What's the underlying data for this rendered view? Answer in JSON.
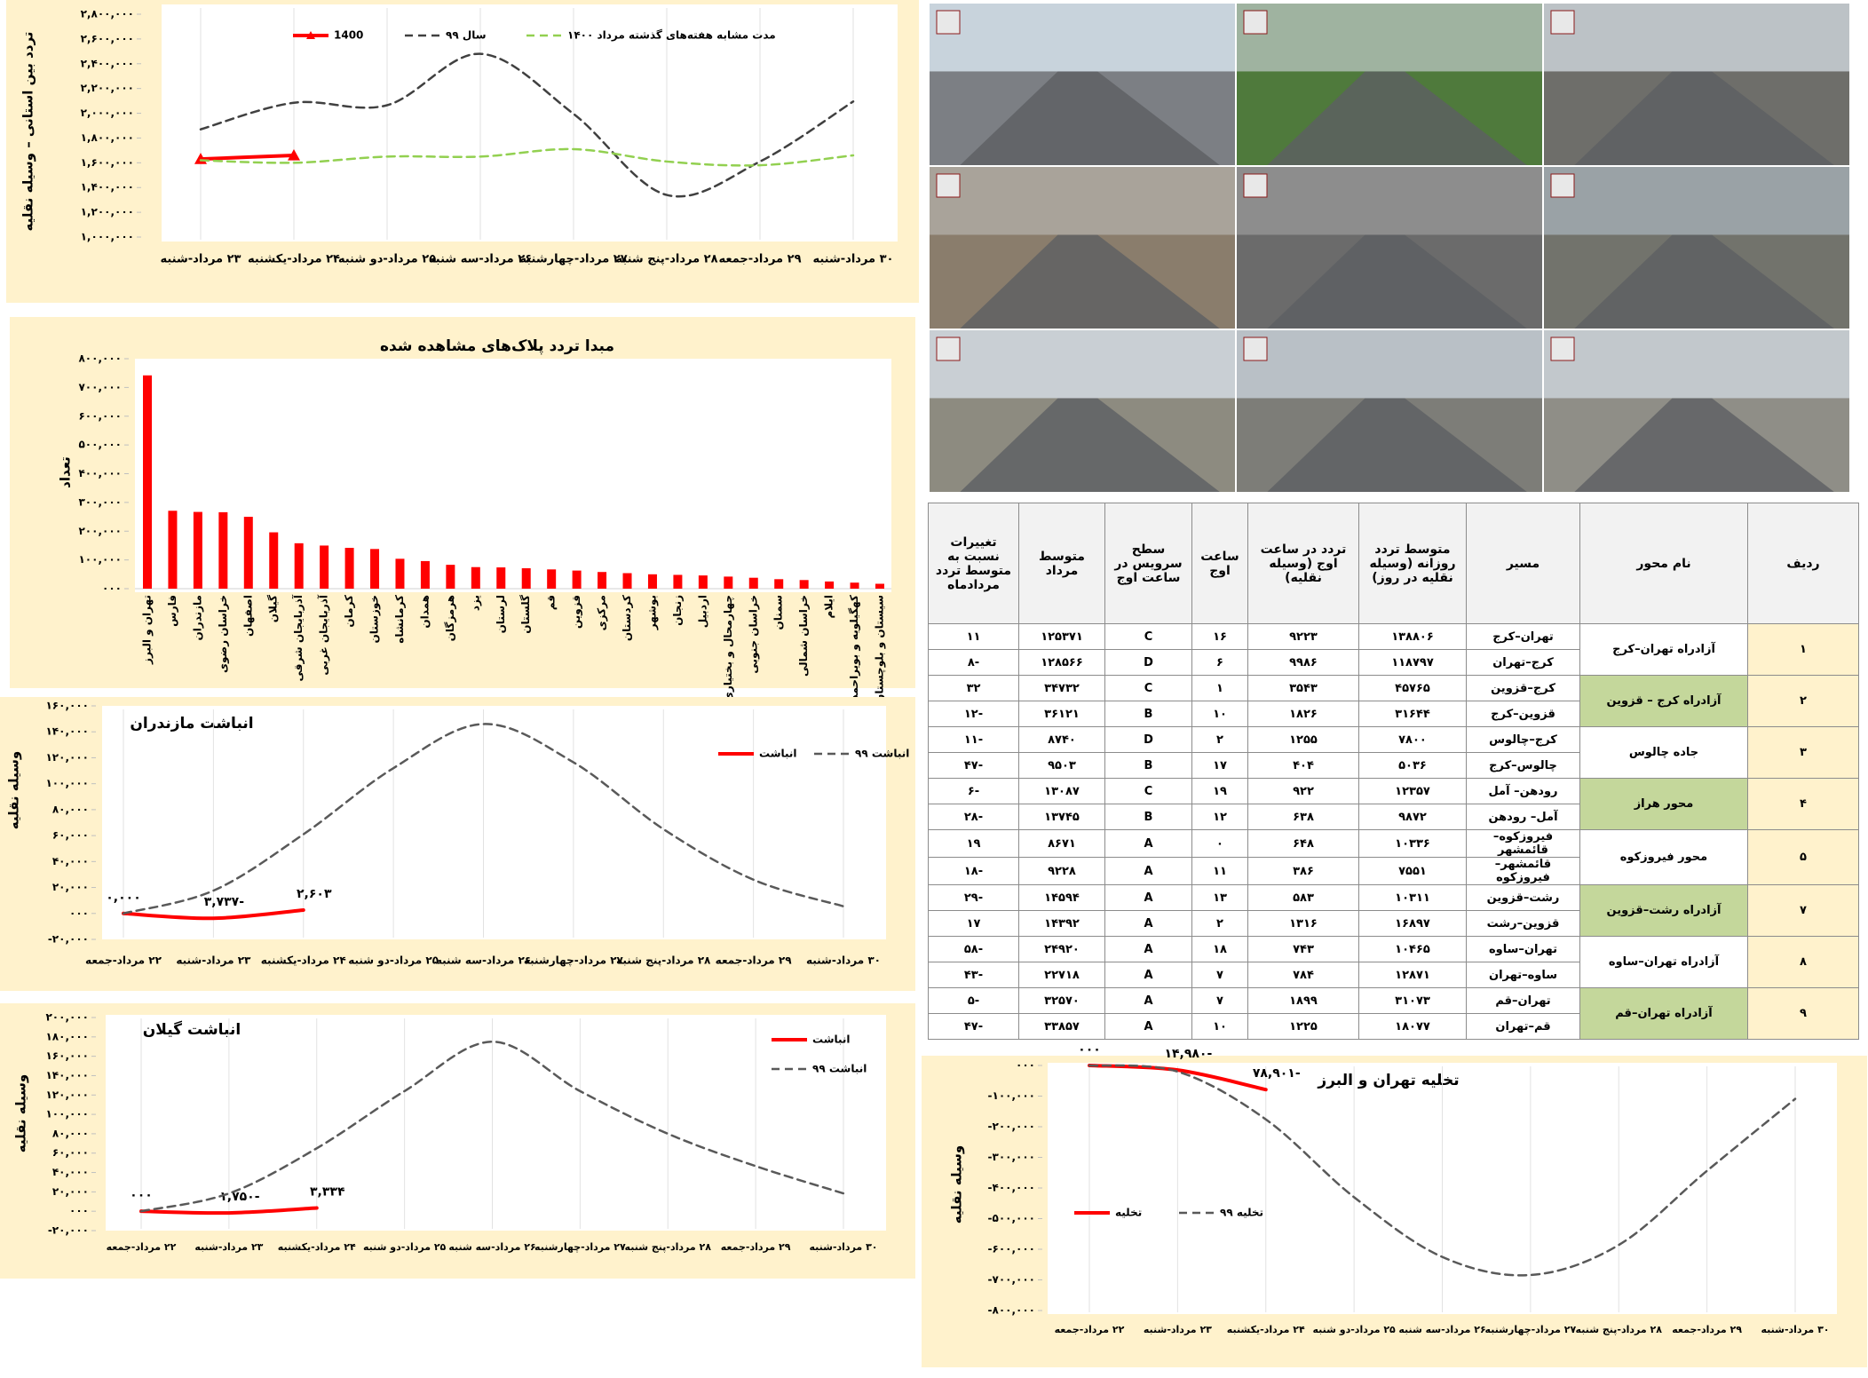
{
  "chart_data": [
    {
      "type": "line",
      "y_label": "تردد بین استانی – وسیله نقلیه",
      "categories": [
        "۲۳ مرداد-شنبه",
        "۲۴ مرداد-یکشنبه",
        "۲۵ مرداد-دو شنبه",
        "۲۶ مرداد-سه شنبه",
        "۲۷ مرداد-چهارشنبه",
        "۲۸ مرداد-پنج شنبه",
        "۲۹ مرداد-جمعه",
        "۳۰ مرداد-شنبه"
      ],
      "series": [
        {
          "name": "1400",
          "color": "#ff0000",
          "marker": "triangle",
          "values": [
            1630000,
            1660000,
            null,
            null,
            null,
            null,
            null,
            null
          ]
        },
        {
          "name": "سال ۹۹",
          "color": "#404040",
          "dash": true,
          "values": [
            1870000,
            2085000,
            2065000,
            2480000,
            1995000,
            1340000,
            1610000,
            2095000
          ]
        },
        {
          "name": "مدت مشابه هفته‌های گذشته مرداد ۱۴۰۰",
          "color": "#92d050",
          "dash": true,
          "values": [
            1620000,
            1600000,
            1650000,
            1650000,
            1710000,
            1610000,
            1580000,
            1660000
          ]
        }
      ],
      "ylim": [
        1000000,
        2800000
      ],
      "yticks": [
        {
          "value": 1000000,
          "label": "۱,۰۰۰,۰۰۰"
        },
        {
          "value": 1200000,
          "label": "۱,۲۰۰,۰۰۰"
        },
        {
          "value": 1400000,
          "label": "۱,۴۰۰,۰۰۰"
        },
        {
          "value": 1600000,
          "label": "۱,۶۰۰,۰۰۰"
        },
        {
          "value": 1800000,
          "label": "۱,۸۰۰,۰۰۰"
        },
        {
          "value": 2000000,
          "label": "۲,۰۰۰,۰۰۰"
        },
        {
          "value": 2200000,
          "label": "۲,۲۰۰,۰۰۰"
        },
        {
          "value": 2400000,
          "label": "۲,۴۰۰,۰۰۰"
        },
        {
          "value": 2600000,
          "label": "۲,۶۰۰,۰۰۰"
        },
        {
          "value": 2800000,
          "label": "۲,۸۰۰,۰۰۰"
        }
      ],
      "legend": "top",
      "grid": "vertical"
    },
    {
      "type": "bar",
      "title": "مبدا تردد پلاک‌های مشاهده شده",
      "y_label": "تعداد",
      "categories": [
        "تهران و البرز",
        "فارس",
        "مازندران",
        "خراسان رضوی",
        "اصفهان",
        "گیلان",
        "آذربایجان شرقی",
        "آذربایجان غربی",
        "کرمان",
        "خوزستان",
        "کرمانشاه",
        "همدان",
        "هرمزگان",
        "یزد",
        "لرستان",
        "گلستان",
        "قم",
        "قزوین",
        "مرکزی",
        "کردستان",
        "بوشهر",
        "زنجان",
        "اردبیل",
        "چهارمحال و بختیاری",
        "خراسان جنوبی",
        "سمنان",
        "خراسان شمالی",
        "ایلام",
        "کهگیلویه و بویراحمد",
        "سیستان و بلوچستان"
      ],
      "values": [
        742000,
        271000,
        267000,
        266000,
        250000,
        196000,
        158000,
        150000,
        142000,
        138000,
        104000,
        96000,
        83000,
        75000,
        74000,
        71000,
        67000,
        63000,
        58000,
        54000,
        50000,
        48000,
        46000,
        42000,
        38000,
        33000,
        30000,
        25000,
        21000,
        17000
      ],
      "color": "#ff0000",
      "ylim": [
        0,
        800000
      ],
      "yticks": [
        {
          "value": 0,
          "label": "۰۰۰"
        },
        {
          "value": 100000,
          "label": "۱۰۰,۰۰۰"
        },
        {
          "value": 200000,
          "label": "۲۰۰,۰۰۰"
        },
        {
          "value": 300000,
          "label": "۳۰۰,۰۰۰"
        },
        {
          "value": 400000,
          "label": "۴۰۰,۰۰۰"
        },
        {
          "value": 500000,
          "label": "۵۰۰,۰۰۰"
        },
        {
          "value": 600000,
          "label": "۶۰۰,۰۰۰"
        },
        {
          "value": 700000,
          "label": "۷۰۰,۰۰۰"
        },
        {
          "value": 800000,
          "label": "۸۰۰,۰۰۰"
        }
      ]
    },
    {
      "type": "line",
      "title": "انباشت مازندران",
      "y_label": "وسیله نقلیه",
      "categories": [
        "۲۲ مرداد-جمعه",
        "۲۳ مرداد-شنبه",
        "۲۴ مرداد-یکشنبه",
        "۲۵ مرداد-دو شنبه",
        "۲۶ مرداد-سه شنبه",
        "۲۷ مرداد-چهارشنبه",
        "۲۸ مرداد-پنج شنبه",
        "۲۹ مرداد-جمعه",
        "۳۰ مرداد-شنبه"
      ],
      "series": [
        {
          "name": "انباشت",
          "color": "#ff0000",
          "values": [
            0,
            -3737,
            2603,
            null,
            null,
            null,
            null,
            null,
            null
          ],
          "value_labels": [
            "۰,۰۰۰",
            "-۳,۷۳۷",
            "۲,۶۰۳",
            null,
            null,
            null,
            null,
            null,
            null
          ]
        },
        {
          "name": "انباشت ۹۹",
          "color": "#595959",
          "dash": true,
          "values": [
            0,
            17600,
            61000,
            112000,
            146000,
            116500,
            65000,
            26000,
            5500
          ]
        }
      ],
      "ylim": [
        -20000,
        160000
      ],
      "yticks": [
        {
          "value": -20000,
          "label": "-۲۰,۰۰۰"
        },
        {
          "value": 0,
          "label": "۰۰۰"
        },
        {
          "value": 20000,
          "label": "۲۰,۰۰۰"
        },
        {
          "value": 40000,
          "label": "۴۰,۰۰۰"
        },
        {
          "value": 60000,
          "label": "۶۰,۰۰۰"
        },
        {
          "value": 80000,
          "label": "۸۰,۰۰۰"
        },
        {
          "value": 100000,
          "label": "۱۰۰,۰۰۰"
        },
        {
          "value": 120000,
          "label": "۱۲۰,۰۰۰"
        },
        {
          "value": 140000,
          "label": "۱۴۰,۰۰۰"
        },
        {
          "value": 160000,
          "label": "۱۶۰,۰۰۰"
        }
      ],
      "legend": "right",
      "grid": "vertical"
    },
    {
      "type": "line",
      "title": "انباشت گیلان",
      "y_label": "وسیله نقلیه",
      "categories": [
        "۲۲ مرداد-جمعه",
        "۲۳ مرداد-شنبه",
        "۲۴ مرداد-یکشنبه",
        "۲۵ مرداد-دو شنبه",
        "۲۶ مرداد-سه شنبه",
        "۲۷ مرداد-چهارشنبه",
        "۲۸ مرداد-پنج شنبه",
        "۲۹ مرداد-جمعه",
        "۳۰ مرداد-شنبه"
      ],
      "series": [
        {
          "name": "انباشت",
          "color": "#ff0000",
          "values": [
            0,
            -1750,
            3334,
            null,
            null,
            null,
            null,
            null,
            null
          ],
          "value_labels": [
            "۰۰۰",
            "-۱,۷۵۰",
            "۳,۳۳۴",
            null,
            null,
            null,
            null,
            null,
            null
          ]
        },
        {
          "name": "انباشت ۹۹",
          "color": "#595959",
          "dash": true,
          "values": [
            0,
            18400,
            65000,
            124000,
            175000,
            124000,
            80000,
            46600,
            18400
          ]
        }
      ],
      "ylim": [
        -20000,
        200000
      ],
      "yticks": [
        {
          "value": -20000,
          "label": "-۲۰,۰۰۰"
        },
        {
          "value": 0,
          "label": "۰۰۰"
        },
        {
          "value": 20000,
          "label": "۲۰,۰۰۰"
        },
        {
          "value": 40000,
          "label": "۴۰,۰۰۰"
        },
        {
          "value": 60000,
          "label": "۶۰,۰۰۰"
        },
        {
          "value": 80000,
          "label": "۸۰,۰۰۰"
        },
        {
          "value": 100000,
          "label": "۱۰۰,۰۰۰"
        },
        {
          "value": 120000,
          "label": "۱۲۰,۰۰۰"
        },
        {
          "value": 140000,
          "label": "۱۴۰,۰۰۰"
        },
        {
          "value": 160000,
          "label": "۱۶۰,۰۰۰"
        },
        {
          "value": 180000,
          "label": "۱۸۰,۰۰۰"
        },
        {
          "value": 200000,
          "label": "۲۰۰,۰۰۰"
        }
      ],
      "legend": "right",
      "grid": "vertical"
    },
    {
      "type": "line",
      "title": "تخلیه تهران و البرز",
      "y_label": "وسیله نقلیه",
      "categories": [
        "۲۲ مرداد-جمعه",
        "۲۳ مرداد-شنبه",
        "۲۴ مرداد-یکشنبه",
        "۲۵ مرداد-دو شنبه",
        "۲۶ مرداد-سه شنبه",
        "۲۷ مرداد-چهارشنبه",
        "۲۸ مرداد-پنج شنبه",
        "۲۹ مرداد-جمعه",
        "۳۰ مرداد-شنبه"
      ],
      "series": [
        {
          "name": "تخلیه",
          "color": "#ff0000",
          "values": [
            0,
            -14980,
            -78901,
            null,
            null,
            null,
            null,
            null,
            null
          ],
          "value_labels": [
            "۰۰۰",
            "-۱۴,۹۸۰",
            "-۷۸,۹۰۱",
            null,
            null,
            null,
            null,
            null,
            null
          ]
        },
        {
          "name": "تخلیه ۹۹",
          "color": "#595959",
          "dash": true,
          "values": [
            0,
            -20000,
            -176000,
            -430000,
            -625000,
            -684000,
            -586000,
            -344000,
            -109000
          ]
        }
      ],
      "ylim": [
        -800000,
        0
      ],
      "yticks": [
        {
          "value": -800000,
          "label": "-۸۰۰,۰۰۰"
        },
        {
          "value": -700000,
          "label": "-۷۰۰,۰۰۰"
        },
        {
          "value": -600000,
          "label": "-۶۰۰,۰۰۰"
        },
        {
          "value": -500000,
          "label": "-۵۰۰,۰۰۰"
        },
        {
          "value": -400000,
          "label": "-۴۰۰,۰۰۰"
        },
        {
          "value": -300000,
          "label": "-۳۰۰,۰۰۰"
        },
        {
          "value": -200000,
          "label": "-۲۰۰,۰۰۰"
        },
        {
          "value": -100000,
          "label": "-۱۰۰,۰۰۰"
        },
        {
          "value": 0,
          "label": "۰۰۰"
        }
      ],
      "legend": "left",
      "grid": "vertical"
    }
  ],
  "table": {
    "columns": [
      "ردیف",
      "نام محور",
      "مسیر",
      "متوسط تردد روزانه (وسیله نقلیه در روز)",
      "تردد در ساعت اوج (وسیله نقلیه)",
      "ساعت اوج",
      "سطح سرویس در ساعت اوج",
      "متوسط مرداد",
      "تغییرات نسبت به متوسط تردد مردادماه"
    ],
    "groups": [
      {
        "id": "۱",
        "name": "آزادراه تهران–کرج",
        "color": "#ffffff",
        "rows": [
          [
            "تهران–کرج",
            "۱۳۸۸۰۶",
            "۹۲۲۳",
            "۱۶",
            "C",
            "۱۲۵۳۷۱",
            "۱۱"
          ],
          [
            "کرج–تهران",
            "۱۱۸۷۹۷",
            "۹۹۸۶",
            "۶",
            "D",
            "۱۲۸۵۶۶",
            "-۸"
          ]
        ]
      },
      {
        "id": "۲",
        "name": "آزادراه کرج – قزوین",
        "color": "#c4d79b",
        "rows": [
          [
            "کرج–قزوین",
            "۴۵۷۶۵",
            "۳۵۴۳",
            "۱",
            "C",
            "۳۴۷۳۲",
            "۳۲"
          ],
          [
            "قزوین–کرج",
            "۳۱۶۴۴",
            "۱۸۲۶",
            "۱۰",
            "B",
            "۳۶۱۲۱",
            "-۱۲"
          ]
        ]
      },
      {
        "id": "۳",
        "name": "جاده چالوس",
        "color": "#ffffff",
        "rows": [
          [
            "کرج–چالوس",
            "۷۸۰۰",
            "۱۲۵۵",
            "۲",
            "D",
            "۸۷۴۰",
            "-۱۱"
          ],
          [
            "چالوس–کرج",
            "۵۰۳۶",
            "۴۰۴",
            "۱۷",
            "B",
            "۹۵۰۳",
            "-۴۷"
          ]
        ]
      },
      {
        "id": "۴",
        "name": "محور هراز",
        "color": "#c4d79b",
        "rows": [
          [
            "رودهن– آمل",
            "۱۲۳۵۷",
            "۹۲۲",
            "۱۹",
            "C",
            "۱۳۰۸۷",
            "-۶"
          ],
          [
            "آمل– رودهن",
            "۹۸۷۲",
            "۶۳۸",
            "۱۲",
            "B",
            "۱۳۷۴۵",
            "-۲۸"
          ]
        ]
      },
      {
        "id": "۵",
        "name": "محور فیروزکوه",
        "color": "#ffffff",
        "rows": [
          [
            "فیروزکوه– قائمشهر",
            "۱۰۳۳۶",
            "۶۴۸",
            "۰",
            "A",
            "۸۶۷۱",
            "۱۹"
          ],
          [
            "قائمشهر– فیروزکوه",
            "۷۵۵۱",
            "۳۸۶",
            "۱۱",
            "A",
            "۹۲۲۸",
            "-۱۸"
          ]
        ]
      },
      {
        "id": "۷",
        "name": "آزادراه رشت–قزوین",
        "color": "#c4d79b",
        "rows": [
          [
            "رشت–قزوین",
            "۱۰۳۱۱",
            "۵۸۳",
            "۱۳",
            "A",
            "۱۴۵۹۴",
            "-۲۹"
          ],
          [
            "قزوین–رشت",
            "۱۶۸۹۷",
            "۱۳۱۶",
            "۲",
            "A",
            "۱۴۳۹۲",
            "۱۷"
          ]
        ]
      },
      {
        "id": "۸",
        "name": "آزادراه تهران–ساوه",
        "color": "#ffffff",
        "rows": [
          [
            "تهران–ساوه",
            "۱۰۴۶۵",
            "۷۴۳",
            "۱۸",
            "A",
            "۲۴۹۲۰",
            "-۵۸"
          ],
          [
            "ساوه–تهران",
            "۱۲۸۷۱",
            "۷۸۴",
            "۷",
            "A",
            "۲۲۷۱۸",
            "-۴۳"
          ]
        ]
      },
      {
        "id": "۹",
        "name": "آزادراه تهران–قم",
        "color": "#c4d79b",
        "rows": [
          [
            "تهران–قم",
            "۳۱۰۷۳",
            "۱۸۹۹",
            "۷",
            "A",
            "۳۲۵۷۰",
            "-۵"
          ],
          [
            "قم–تهران",
            "۱۸۰۷۷",
            "۱۲۲۵",
            "۱۰",
            "A",
            "۳۳۸۵۷",
            "-۴۷"
          ]
        ]
      }
    ]
  }
}
